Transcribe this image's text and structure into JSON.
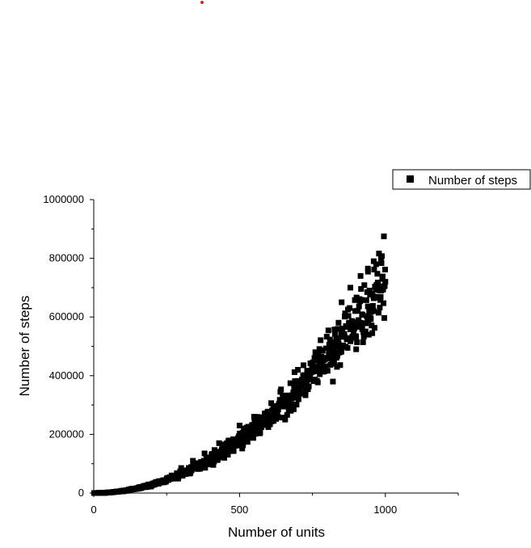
{
  "chart_data": {
    "type": "scatter",
    "title": "",
    "xlabel": "Number of units",
    "ylabel": "Number of steps",
    "xlim": [
      0,
      1250
    ],
    "ylim": [
      0,
      1000000
    ],
    "xticks": [
      0,
      500,
      1000
    ],
    "xtick_labels": [
      "0",
      "500",
      "1000"
    ],
    "yticks": [
      0,
      200000,
      400000,
      600000,
      800000,
      1000000
    ],
    "ytick_labels": [
      "0",
      "200000",
      "400000",
      "600000",
      "800000",
      "1000000"
    ],
    "grid": false,
    "legend_position": "top-right",
    "series": [
      {
        "name": "Number of steps",
        "color": "#000000",
        "marker": "square",
        "trend": "approximately 0.72 * x^2 with roughly ±10% scatter, x from 1 to 1000",
        "points": [
          [
            5,
            20
          ],
          [
            20,
            300
          ],
          [
            40,
            1150
          ],
          [
            60,
            2600
          ],
          [
            80,
            4600
          ],
          [
            100,
            7200
          ],
          [
            120,
            10400
          ],
          [
            140,
            14100
          ],
          [
            160,
            18400
          ],
          [
            180,
            23300
          ],
          [
            200,
            28800
          ],
          [
            220,
            34800
          ],
          [
            240,
            41500
          ],
          [
            260,
            48700
          ],
          [
            280,
            56400
          ],
          [
            300,
            64800
          ],
          [
            320,
            73700
          ],
          [
            340,
            83200
          ],
          [
            360,
            93300
          ],
          [
            380,
            104000
          ],
          [
            400,
            115000
          ],
          [
            420,
            127000
          ],
          [
            440,
            139000
          ],
          [
            460,
            152000
          ],
          [
            480,
            166000
          ],
          [
            500,
            180000
          ],
          [
            520,
            195000
          ],
          [
            540,
            210000
          ],
          [
            560,
            226000
          ],
          [
            580,
            242000
          ],
          [
            600,
            259000
          ],
          [
            620,
            277000
          ],
          [
            640,
            295000
          ],
          [
            660,
            314000
          ],
          [
            680,
            333000
          ],
          [
            700,
            353000
          ],
          [
            720,
            373000
          ],
          [
            740,
            394000
          ],
          [
            760,
            416000
          ],
          [
            780,
            438000
          ],
          [
            800,
            461000
          ],
          [
            820,
            484000
          ],
          [
            840,
            508000
          ],
          [
            860,
            533000
          ],
          [
            880,
            558000
          ],
          [
            900,
            583000
          ],
          [
            920,
            609000
          ],
          [
            940,
            636000
          ],
          [
            960,
            664000
          ],
          [
            980,
            691000
          ],
          [
            1000,
            720000
          ],
          [
            995,
            875000
          ],
          [
            985,
            800000
          ],
          [
            960,
            790000
          ],
          [
            940,
            765000
          ],
          [
            915,
            740000
          ],
          [
            880,
            700000
          ],
          [
            850,
            650000
          ],
          [
            820,
            380000
          ],
          [
            955,
            545000
          ],
          [
            900,
            490000
          ],
          [
            760,
            480000
          ],
          [
            700,
            420000
          ],
          [
            640,
            345000
          ],
          [
            550,
            260000
          ],
          [
            500,
            230000
          ],
          [
            430,
            170000
          ],
          [
            380,
            135000
          ],
          [
            340,
            110000
          ],
          [
            300,
            85000
          ]
        ]
      }
    ]
  }
}
